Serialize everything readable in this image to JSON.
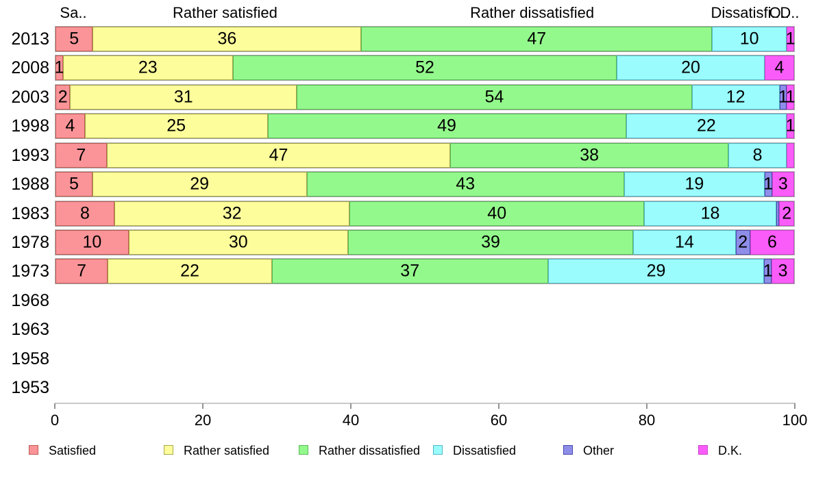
{
  "chart_data": {
    "type": "bar",
    "stacked": true,
    "orientation": "horizontal",
    "title": "",
    "x_axis": {
      "min": 0,
      "max": 100,
      "ticks": [
        "0",
        "20",
        "40",
        "60",
        "80",
        "100"
      ]
    },
    "column_headers": [
      {
        "text": "Sa..",
        "x_pct": 2.5
      },
      {
        "text": "Rather satisfied",
        "x_pct": 23
      },
      {
        "text": "Rather dissatisfied",
        "x_pct": 64.5
      },
      {
        "text": "Dissatisfi..",
        "x_pct": 93.3
      },
      {
        "text": "O..",
        "x_pct": 97.9
      },
      {
        "text": "D..",
        "x_pct": 99.3
      }
    ],
    "series": [
      {
        "name": "Satisfied",
        "fill": "#FA9498",
        "border": "#C25A52"
      },
      {
        "name": "Rather satisfied",
        "fill": "#FDFD9C",
        "border": "#A8A848"
      },
      {
        "name": "Rather dissatisfied",
        "fill": "#94F98C",
        "border": "#58B858"
      },
      {
        "name": "Dissatisfied",
        "fill": "#9AFCFC",
        "border": "#52B8C8"
      },
      {
        "name": "Other",
        "fill": "#8E8EE8",
        "border": "#4848B0"
      },
      {
        "name": "D.K.",
        "fill": "#FA5CFA",
        "border": "#C844C8"
      }
    ],
    "categories": [
      "2013",
      "2008",
      "2003",
      "1998",
      "1993",
      "1988",
      "1983",
      "1978",
      "1973",
      "1968",
      "1963",
      "1958",
      "1953"
    ],
    "rows": [
      {
        "year": "2013",
        "values": [
          5,
          36,
          47,
          10,
          0,
          1
        ],
        "labels": [
          "5",
          "36",
          "47",
          "10",
          "",
          "1"
        ]
      },
      {
        "year": "2008",
        "values": [
          1,
          23,
          52,
          20,
          0,
          4
        ],
        "labels": [
          "1",
          "23",
          "52",
          "20",
          "",
          "4"
        ]
      },
      {
        "year": "2003",
        "values": [
          2,
          31,
          54,
          12,
          1,
          1
        ],
        "labels": [
          "2",
          "31",
          "54",
          "12",
          "1",
          "1"
        ]
      },
      {
        "year": "1998",
        "values": [
          4,
          25,
          49,
          22,
          0,
          1
        ],
        "labels": [
          "4",
          "25",
          "49",
          "22",
          "",
          "1"
        ]
      },
      {
        "year": "1993",
        "values": [
          7,
          47,
          38,
          8,
          0,
          1
        ],
        "labels": [
          "7",
          "47",
          "38",
          "8",
          "",
          ""
        ]
      },
      {
        "year": "1988",
        "values": [
          5,
          29,
          43,
          19,
          1,
          3
        ],
        "labels": [
          "5",
          "29",
          "43",
          "19",
          "1",
          "3"
        ]
      },
      {
        "year": "1983",
        "values": [
          8,
          32,
          40,
          18,
          0.4,
          2
        ],
        "labels": [
          "8",
          "32",
          "40",
          "18",
          "",
          "2"
        ]
      },
      {
        "year": "1978",
        "values": [
          10,
          30,
          39,
          14,
          2,
          6
        ],
        "labels": [
          "10",
          "30",
          "39",
          "14",
          "2",
          "6"
        ]
      },
      {
        "year": "1973",
        "values": [
          7,
          22,
          37,
          29,
          1,
          3
        ],
        "labels": [
          "7",
          "22",
          "37",
          "29",
          "1",
          "3"
        ]
      },
      {
        "year": "1968",
        "values": [
          0,
          0,
          0,
          0,
          0,
          0
        ],
        "labels": [
          "",
          "",
          "",
          "",
          "",
          ""
        ]
      },
      {
        "year": "1963",
        "values": [
          0,
          0,
          0,
          0,
          0,
          0
        ],
        "labels": [
          "",
          "",
          "",
          "",
          "",
          ""
        ]
      },
      {
        "year": "1958",
        "values": [
          0,
          0,
          0,
          0,
          0,
          0
        ],
        "labels": [
          "",
          "",
          "",
          "",
          "",
          ""
        ]
      },
      {
        "year": "1953",
        "values": [
          0,
          0,
          0,
          0,
          0,
          0
        ],
        "labels": [
          "",
          "",
          "",
          "",
          "",
          ""
        ]
      }
    ],
    "legend": {
      "position": "bottom",
      "items": [
        "Satisfied",
        "Rather satisfied",
        "Rather dissatisfied",
        "Dissatisfied",
        "Other",
        "D.K."
      ]
    }
  }
}
